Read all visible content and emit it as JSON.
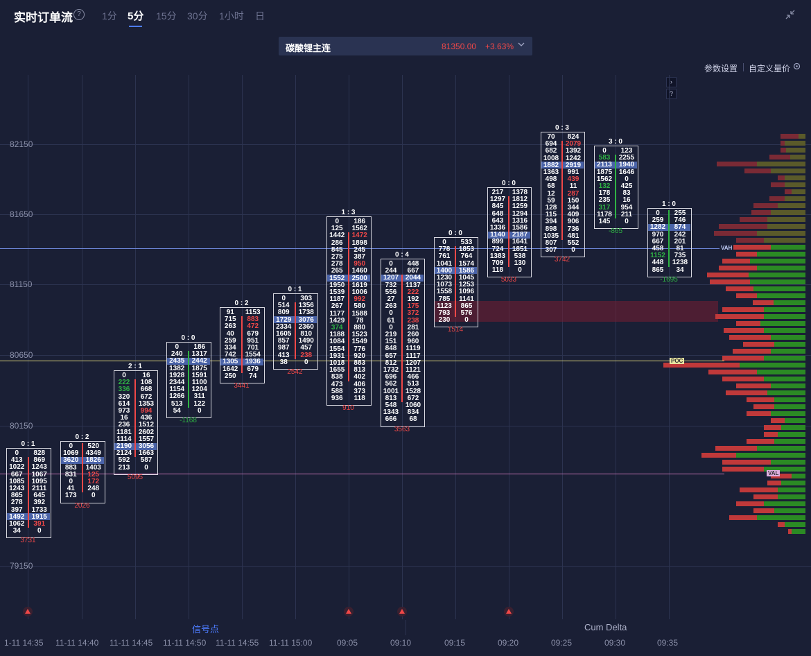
{
  "header": {
    "title": "实时订单流",
    "help": "?",
    "tabs": [
      "1分",
      "5分",
      "15分",
      "30分",
      "1小时",
      "日"
    ],
    "active_tab": 1
  },
  "selector": {
    "name": "碳酸锂主连",
    "price": "81350.00",
    "change": "+3.63%"
  },
  "toolbar": {
    "params": "参数设置",
    "custom": "自定义量价"
  },
  "yaxis": [
    "82150",
    "81650",
    "81150",
    "80650",
    "80150",
    "79150"
  ],
  "bottom": {
    "signal_tab": "信号点",
    "delta_tab": "Cum Delta"
  },
  "xaxis": [
    "1-11 14:35",
    "11-11 14:40",
    "11-11 14:45",
    "11-11 14:50",
    "11-11 14:55",
    "11-11 15:00",
    "09:05",
    "09:10",
    "09:15",
    "09:20",
    "09:25",
    "09:30",
    "09:35"
  ],
  "profile_labels": {
    "vah": "VAH",
    "poc": "POC",
    "val": "VAL"
  },
  "colors": {
    "up": "#f04848",
    "down": "#2fb344",
    "poc": "#4d6ab8",
    "bg": "#1a1f35"
  },
  "candles": [
    {
      "head": "0  :  1",
      "foot": "3731",
      "foot_color": "red",
      "rows": [
        [
          "0",
          "828"
        ],
        [
          "413",
          "869"
        ],
        [
          "1022",
          "1243"
        ],
        [
          "667",
          "1067"
        ],
        [
          "1085",
          "1095"
        ],
        [
          "1243",
          "2111"
        ],
        [
          "865",
          "645"
        ],
        [
          "278",
          "392"
        ],
        [
          "397",
          "1733"
        ],
        [
          "1492",
          "1915"
        ],
        [
          "1062",
          "391"
        ],
        [
          "34",
          "0"
        ]
      ],
      "hl": [
        9
      ],
      "rr": [
        10
      ]
    },
    {
      "head": "0  :  2",
      "foot": "2026",
      "foot_color": "red",
      "rows": [
        [
          "0",
          "520"
        ],
        [
          "1069",
          "4349"
        ],
        [
          "3620",
          "1826"
        ],
        [
          "883",
          "1403"
        ],
        [
          "831",
          "125"
        ],
        [
          "0",
          "172"
        ],
        [
          "41",
          "248"
        ],
        [
          "173",
          "0"
        ]
      ],
      "hl": [
        2
      ],
      "rr": [
        4,
        5
      ]
    },
    {
      "head": "2  :  1",
      "foot": "5095",
      "foot_color": "red",
      "rows": [
        [
          "0",
          "16"
        ],
        [
          "222",
          "108"
        ],
        [
          "336",
          "668"
        ],
        [
          "320",
          "672"
        ],
        [
          "614",
          "1353"
        ],
        [
          "973",
          "994"
        ],
        [
          "16",
          "436"
        ],
        [
          "236",
          "1512"
        ],
        [
          "1181",
          "2602"
        ],
        [
          "1114",
          "1557"
        ],
        [
          "2190",
          "3056"
        ],
        [
          "2124",
          "1663"
        ],
        [
          "592",
          "587"
        ],
        [
          "213",
          "0"
        ]
      ],
      "hl": [
        10
      ],
      "gl": [
        1,
        2
      ],
      "rr": [
        5
      ]
    },
    {
      "head": "0  :  0",
      "foot": "-1168",
      "foot_color": "green",
      "rows": [
        [
          "0",
          "186"
        ],
        [
          "240",
          "1317"
        ],
        [
          "2435",
          "2442"
        ],
        [
          "1382",
          "1875"
        ],
        [
          "1928",
          "1591"
        ],
        [
          "2344",
          "1100"
        ],
        [
          "1154",
          "1204"
        ],
        [
          "1266",
          "311"
        ],
        [
          "513",
          "122"
        ],
        [
          "54",
          "0"
        ]
      ],
      "hl": [
        2
      ]
    },
    {
      "head": "0  :  2",
      "foot": "3441",
      "foot_color": "red",
      "rows": [
        [
          "91",
          "1153"
        ],
        [
          "715",
          "883"
        ],
        [
          "263",
          "472"
        ],
        [
          "40",
          "679"
        ],
        [
          "259",
          "951"
        ],
        [
          "334",
          "701"
        ],
        [
          "742",
          "1554"
        ],
        [
          "1305",
          "1936"
        ],
        [
          "1642",
          "679"
        ],
        [
          "250",
          "74"
        ]
      ],
      "hl": [
        7
      ],
      "rr": [
        1,
        2
      ]
    },
    {
      "head": "0  :  1",
      "foot": "2542",
      "foot_color": "red",
      "rows": [
        [
          "0",
          "303"
        ],
        [
          "514",
          "1356"
        ],
        [
          "809",
          "1738"
        ],
        [
          "1729",
          "3076"
        ],
        [
          "2334",
          "2360"
        ],
        [
          "1605",
          "810"
        ],
        [
          "857",
          "1490"
        ],
        [
          "987",
          "457"
        ],
        [
          "413",
          "238"
        ],
        [
          "38",
          "0"
        ]
      ],
      "hl": [
        3
      ],
      "rr": [
        8
      ]
    },
    {
      "head": "1  :  3",
      "foot": "910",
      "foot_color": "red",
      "rows": [
        [
          "0",
          "186"
        ],
        [
          "125",
          "1562"
        ],
        [
          "1442",
          "1472"
        ],
        [
          "286",
          "1898"
        ],
        [
          "845",
          "245"
        ],
        [
          "275",
          "387"
        ],
        [
          "278",
          "950"
        ],
        [
          "265",
          "1460"
        ],
        [
          "1552",
          "2500"
        ],
        [
          "1950",
          "1619"
        ],
        [
          "1539",
          "1006"
        ],
        [
          "1187",
          "992"
        ],
        [
          "267",
          "580"
        ],
        [
          "1177",
          "1588"
        ],
        [
          "1429",
          "78"
        ],
        [
          "374",
          "880"
        ],
        [
          "1188",
          "1523"
        ],
        [
          "1084",
          "1549"
        ],
        [
          "1554",
          "776"
        ],
        [
          "1931",
          "920"
        ],
        [
          "1018",
          "883"
        ],
        [
          "1655",
          "813"
        ],
        [
          "838",
          "402"
        ],
        [
          "473",
          "406"
        ],
        [
          "588",
          "373"
        ],
        [
          "936",
          "118"
        ]
      ],
      "hl": [
        8
      ],
      "gl": [
        15
      ],
      "rr": [
        2,
        6,
        11
      ]
    },
    {
      "head": "0  :  4",
      "foot": "3563",
      "foot_color": "red",
      "rows": [
        [
          "0",
          "448"
        ],
        [
          "244",
          "667"
        ],
        [
          "1207",
          "2044"
        ],
        [
          "732",
          "1137"
        ],
        [
          "556",
          "222"
        ],
        [
          "27",
          "192"
        ],
        [
          "263",
          "175"
        ],
        [
          "0",
          "372"
        ],
        [
          "61",
          "238"
        ],
        [
          "0",
          "281"
        ],
        [
          "219",
          "260"
        ],
        [
          "151",
          "960"
        ],
        [
          "848",
          "1119"
        ],
        [
          "657",
          "1117"
        ],
        [
          "812",
          "1207"
        ],
        [
          "1732",
          "1121"
        ],
        [
          "696",
          "466"
        ],
        [
          "562",
          "513"
        ],
        [
          "1001",
          "1528"
        ],
        [
          "813",
          "672"
        ],
        [
          "548",
          "1060"
        ],
        [
          "1343",
          "834"
        ],
        [
          "666",
          "68"
        ]
      ],
      "hl": [
        2
      ],
      "rr": [
        4,
        6,
        7,
        8
      ]
    },
    {
      "head": "0  :  0",
      "foot": "1514",
      "foot_color": "red",
      "rows": [
        [
          "0",
          "533"
        ],
        [
          "778",
          "1853"
        ],
        [
          "761",
          "764"
        ],
        [
          "1041",
          "1574"
        ],
        [
          "1400",
          "1586"
        ],
        [
          "1230",
          "1045"
        ],
        [
          "1073",
          "1253"
        ],
        [
          "1558",
          "1096"
        ],
        [
          "785",
          "1141"
        ],
        [
          "1123",
          "865"
        ],
        [
          "793",
          "576"
        ],
        [
          "230",
          "0"
        ]
      ],
      "hl": [
        4
      ]
    },
    {
      "head": "0  :  0",
      "foot": "5033",
      "foot_color": "red",
      "rows": [
        [
          "217",
          "1378"
        ],
        [
          "1297",
          "1812"
        ],
        [
          "845",
          "1259"
        ],
        [
          "648",
          "1294"
        ],
        [
          "643",
          "1316"
        ],
        [
          "1336",
          "1586"
        ],
        [
          "1140",
          "2187"
        ],
        [
          "899",
          "1641"
        ],
        [
          "724",
          "1851"
        ],
        [
          "1383",
          "538"
        ],
        [
          "709",
          "130"
        ],
        [
          "118",
          "0"
        ]
      ],
      "hl": [
        6
      ]
    },
    {
      "head": "0  :  3",
      "foot": "3742",
      "foot_color": "red",
      "rows": [
        [
          "70",
          "824"
        ],
        [
          "694",
          "2079"
        ],
        [
          "682",
          "1392"
        ],
        [
          "1008",
          "1242"
        ],
        [
          "1882",
          "2919"
        ],
        [
          "1363",
          "991"
        ],
        [
          "498",
          "439"
        ],
        [
          "68",
          "11"
        ],
        [
          "12",
          "287"
        ],
        [
          "59",
          "150"
        ],
        [
          "128",
          "344"
        ],
        [
          "115",
          "409"
        ],
        [
          "394",
          "906"
        ],
        [
          "898",
          "736"
        ],
        [
          "1035",
          "481"
        ],
        [
          "807",
          "552"
        ],
        [
          "307",
          "0"
        ]
      ],
      "hl": [
        4
      ],
      "rr": [
        1,
        6,
        8
      ]
    },
    {
      "head": "3  :  0",
      "foot": "-865",
      "foot_color": "green",
      "rows": [
        [
          "0",
          "123"
        ],
        [
          "583",
          "2255"
        ],
        [
          "2113",
          "1940"
        ],
        [
          "1875",
          "1646"
        ],
        [
          "1562",
          "0"
        ],
        [
          "132",
          "425"
        ],
        [
          "178",
          "83"
        ],
        [
          "235",
          "16"
        ],
        [
          "317",
          "954"
        ],
        [
          "1178",
          "211"
        ],
        [
          "145",
          "0"
        ]
      ],
      "hl": [
        2
      ],
      "gl": [
        1,
        5,
        8
      ]
    },
    {
      "head": "1  :  0",
      "foot": "-1695",
      "foot_color": "green",
      "rows": [
        [
          "0",
          "255"
        ],
        [
          "259",
          "746"
        ],
        [
          "1282",
          "874"
        ],
        [
          "970",
          "242"
        ],
        [
          "667",
          "201"
        ],
        [
          "458",
          "81"
        ],
        [
          "1152",
          "735"
        ],
        [
          "448",
          "1238"
        ],
        [
          "865",
          "34"
        ]
      ],
      "hl": [
        2
      ],
      "gl": [
        6
      ]
    }
  ]
}
